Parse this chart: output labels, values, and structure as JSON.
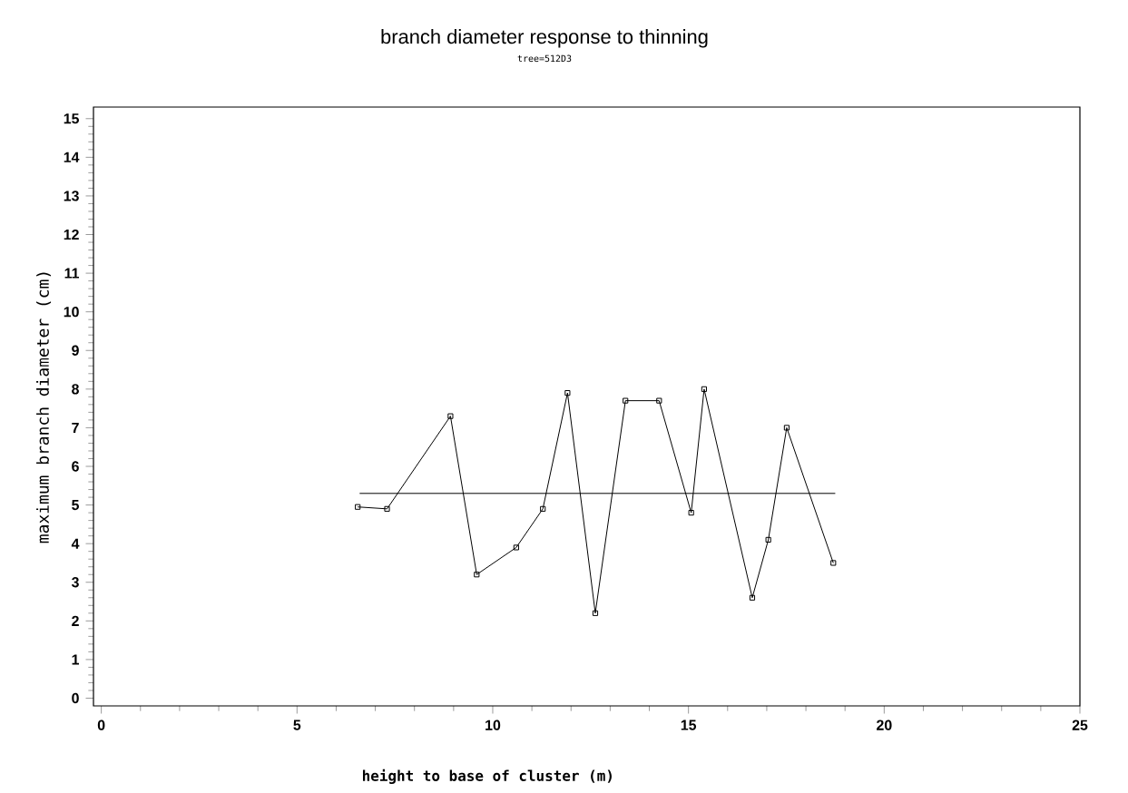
{
  "chart_data": {
    "type": "line",
    "title": "branch diameter response to thinning",
    "subtitle": "tree=512D3",
    "xlabel": "height to base of cluster (m)",
    "ylabel": "maximum branch diameter (cm)",
    "xlim": [
      -0.2,
      25
    ],
    "xticks": [
      0,
      5,
      10,
      15,
      20,
      25
    ],
    "ylim": [
      -0.2,
      15.3
    ],
    "yticks": [
      0,
      1,
      2,
      3,
      4,
      5,
      6,
      7,
      8,
      9,
      10,
      11,
      12,
      13,
      14,
      15
    ],
    "marker": "square",
    "line_style": "solid",
    "series": [
      {
        "color": "#000000",
        "x": [
          6.55,
          7.3,
          8.92,
          9.59,
          10.6,
          11.28,
          11.91,
          12.62,
          13.39,
          14.25,
          15.07,
          15.4,
          16.63,
          17.04,
          17.51,
          18.7
        ],
        "values": [
          4.95,
          4.9,
          7.3,
          3.2,
          3.9,
          4.9,
          7.9,
          2.2,
          7.7,
          7.7,
          4.8,
          8.0,
          2.6,
          4.1,
          7.0,
          3.5
        ]
      },
      {
        "type": "line",
        "marker": "none",
        "color": "#000000",
        "x": [
          6.6,
          18.75
        ],
        "values": [
          5.3,
          5.3
        ]
      }
    ]
  }
}
